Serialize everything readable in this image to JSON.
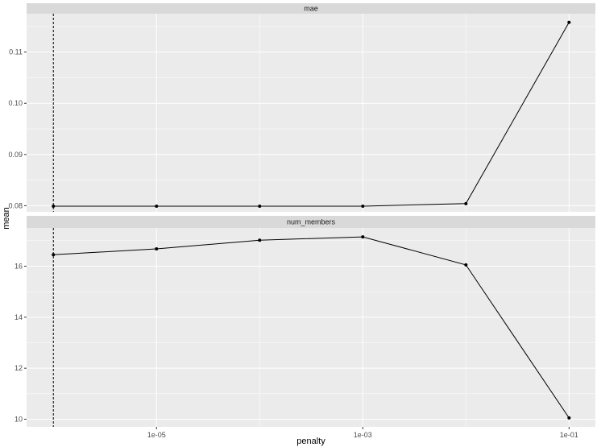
{
  "chart_data": {
    "type": "line",
    "xlabel": "penalty",
    "ylabel": "mean",
    "x_scale": "log10",
    "x_ticks": [
      1e-05,
      0.001,
      0.1
    ],
    "x_tick_labels": [
      "1e-05",
      "1e-03",
      "1e-01"
    ],
    "xlim": [
      5.5e-07,
      0.18
    ],
    "vline_x": 1e-06,
    "colors": {
      "panel_bg": "#ebebeb",
      "strip_bg": "#d9d9d9",
      "grid": "#ffffff",
      "line": "#000000"
    },
    "panels": [
      {
        "strip": "mae",
        "ylim": [
          0.0788,
          0.1175
        ],
        "y_ticks": [
          0.08,
          0.09,
          0.1,
          0.11
        ],
        "y_tick_labels": [
          "0.08",
          "0.09",
          "0.10",
          "0.11"
        ],
        "x": [
          1e-06,
          1e-05,
          0.0001,
          0.001,
          0.01,
          0.1
        ],
        "y": [
          0.0799,
          0.0799,
          0.0799,
          0.0799,
          0.0804,
          0.1158
        ]
      },
      {
        "strip": "num_members",
        "ylim": [
          9.7,
          17.5
        ],
        "y_ticks": [
          10,
          12,
          14,
          16
        ],
        "y_tick_labels": [
          "10",
          "12",
          "14",
          "16"
        ],
        "x": [
          1e-06,
          1e-05,
          0.0001,
          0.001,
          0.01,
          0.1
        ],
        "y": [
          16.45,
          16.68,
          17.02,
          17.15,
          16.05,
          10.05
        ]
      }
    ]
  }
}
